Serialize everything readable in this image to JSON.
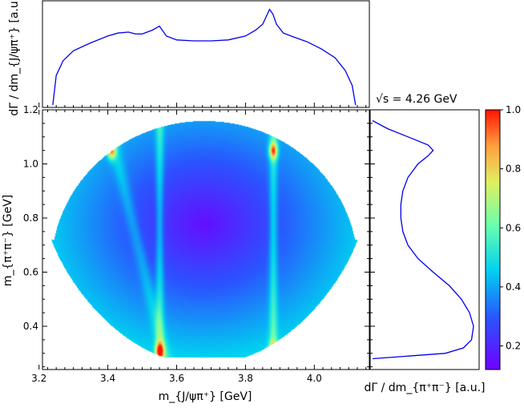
{
  "chart_data": [
    {
      "type": "heatmap",
      "name": "dalitz-plot",
      "xlabel": "m_{J/ψπ⁺} [GeV]",
      "ylabel": "m_{π⁺π⁻} [GeV]",
      "xlim": [
        3.21,
        4.16
      ],
      "ylim": [
        0.24,
        1.2
      ],
      "xticks": [
        "3.2",
        "3.4",
        "3.6",
        "3.8",
        "4.0"
      ],
      "yticks": [
        "0.4",
        "0.6",
        "0.8",
        "1.0",
        "1.2"
      ],
      "colormap": "jet",
      "colorbar": {
        "range": [
          0.12,
          1.0
        ],
        "ticks": [
          "0.2",
          "0.4",
          "0.6",
          "0.8",
          "1.0"
        ]
      },
      "features": {
        "center_minimum": [
          3.68,
          0.78
        ],
        "vertical_bands_x": [
          3.55,
          3.88
        ],
        "hotspots": [
          [
            3.41,
            1.05
          ],
          [
            3.55,
            0.31
          ],
          [
            3.88,
            1.05
          ],
          [
            3.88,
            0.31
          ]
        ]
      }
    },
    {
      "type": "line",
      "name": "top-projection",
      "ylabel": "dΓ / dm_{J/ψπ⁺} [a.u.]",
      "x": [
        3.24,
        3.25,
        3.27,
        3.3,
        3.35,
        3.4,
        3.43,
        3.46,
        3.48,
        3.5,
        3.53,
        3.55,
        3.57,
        3.6,
        3.65,
        3.7,
        3.75,
        3.8,
        3.83,
        3.85,
        3.87,
        3.88,
        3.89,
        3.91,
        3.94,
        3.98,
        4.02,
        4.06,
        4.09,
        4.11,
        4.12
      ],
      "y": [
        0.0,
        0.3,
        0.45,
        0.55,
        0.63,
        0.7,
        0.73,
        0.74,
        0.72,
        0.72,
        0.76,
        0.8,
        0.7,
        0.66,
        0.65,
        0.65,
        0.66,
        0.7,
        0.76,
        0.82,
        0.97,
        0.92,
        0.82,
        0.73,
        0.69,
        0.64,
        0.57,
        0.48,
        0.35,
        0.2,
        0.0
      ]
    },
    {
      "type": "line",
      "name": "right-projection",
      "title": "√s = 4.26 GeV",
      "xlabel": "dΓ / dm_{π⁺π⁻} [a.u.]",
      "y": [
        0.28,
        0.3,
        0.32,
        0.35,
        0.4,
        0.45,
        0.5,
        0.55,
        0.6,
        0.65,
        0.7,
        0.75,
        0.8,
        0.85,
        0.9,
        0.95,
        1.0,
        1.03,
        1.05,
        1.07,
        1.1,
        1.13,
        1.16
      ],
      "x": [
        0.0,
        0.72,
        0.9,
        0.98,
        1.0,
        0.96,
        0.88,
        0.76,
        0.6,
        0.45,
        0.35,
        0.3,
        0.28,
        0.28,
        0.3,
        0.35,
        0.45,
        0.55,
        0.6,
        0.55,
        0.35,
        0.15,
        0.0
      ]
    }
  ]
}
